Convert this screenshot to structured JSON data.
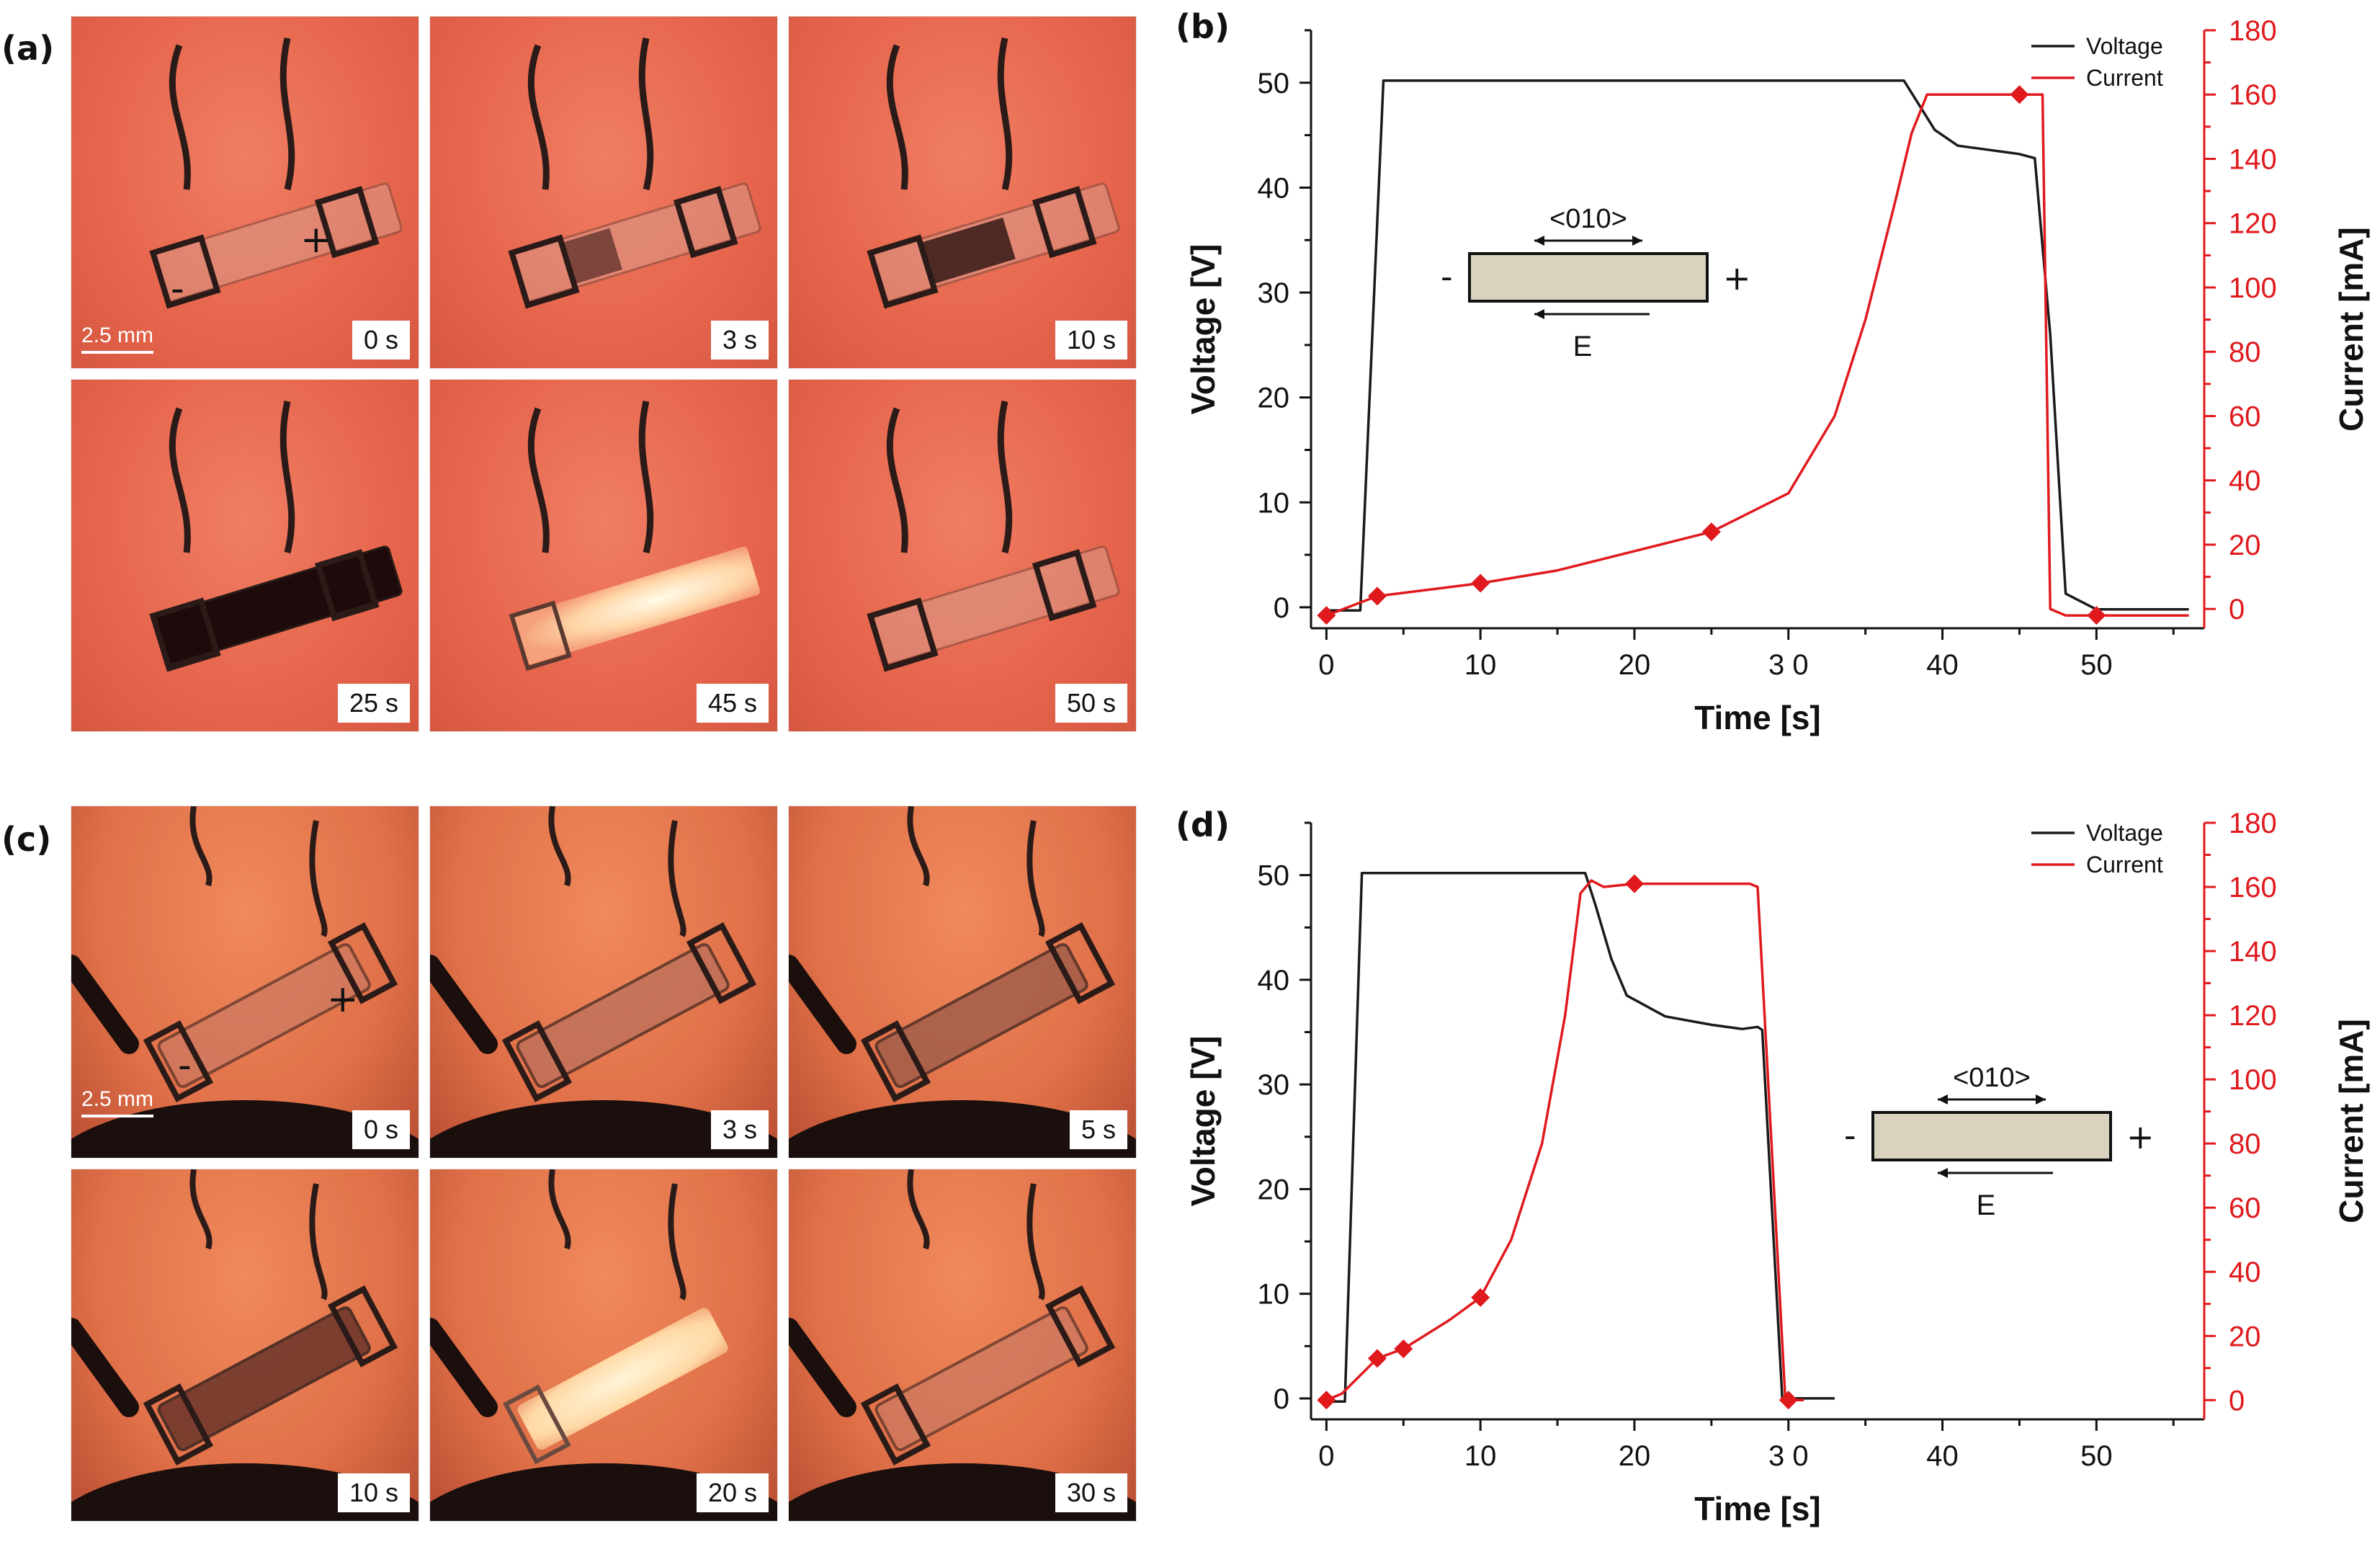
{
  "panels": {
    "a": {
      "label": "(a)",
      "times": [
        "0 s",
        "3 s",
        "10 s",
        "25 s",
        "45 s",
        "50 s"
      ],
      "scale": "2.5 mm",
      "minus": "-",
      "plus": "+"
    },
    "b": {
      "label": "(b)"
    },
    "c": {
      "label": "(c)",
      "times": [
        "0 s",
        "3 s",
        "5 s",
        "10 s",
        "20 s",
        "30 s"
      ],
      "scale": "2.5 mm",
      "minus": "-",
      "plus": "+"
    },
    "d": {
      "label": "(d)"
    }
  },
  "chart_data": [
    {
      "type": "line",
      "panel": "(b)",
      "xlabel": "Time [s]",
      "ylabel": "Voltage [V]",
      "y2label": "Current [mA]",
      "xlim": [
        -1,
        57
      ],
      "ylim": [
        -2,
        55
      ],
      "y2lim": [
        -6,
        180
      ],
      "xticks": [
        "0",
        "10",
        "20",
        "3 0",
        "40",
        "50"
      ],
      "xtick_values": [
        0,
        10,
        20,
        30,
        40,
        50
      ],
      "yticks": [
        0,
        10,
        20,
        30,
        40,
        50
      ],
      "y2ticks": [
        0,
        20,
        40,
        60,
        80,
        100,
        120,
        140,
        160,
        180
      ],
      "legend_position": "top-right",
      "series": [
        {
          "name": "Voltage",
          "color": "#1a1a1a",
          "axis": "left",
          "x": [
            0,
            2.2,
            3.7,
            37.5,
            39.5,
            41,
            45,
            46,
            47,
            48,
            50,
            56
          ],
          "y": [
            -0.3,
            -0.3,
            50.2,
            50.2,
            45.5,
            44,
            43.2,
            42.8,
            26,
            1.3,
            -0.2,
            -0.2
          ]
        },
        {
          "name": "Current",
          "color": "#e0191d",
          "axis": "right",
          "x": [
            0,
            3.3,
            5,
            10,
            15,
            20,
            25,
            30,
            33,
            35,
            37,
            38,
            39,
            45,
            46.5,
            47,
            48,
            50,
            56
          ],
          "y": [
            -2,
            4,
            5,
            8,
            12,
            18,
            24,
            36,
            60,
            90,
            128,
            148,
            160,
            160,
            160,
            0,
            -2,
            -2,
            -2
          ],
          "markers": {
            "x": [
              0,
              3.3,
              10,
              25,
              45,
              50
            ],
            "y": [
              -2,
              4,
              8,
              24,
              160,
              -2
            ]
          }
        }
      ],
      "inset": {
        "direction": "<010>",
        "field": "E",
        "minus": "-",
        "plus": "+",
        "fill": "#d8d2bf"
      }
    },
    {
      "type": "line",
      "panel": "(d)",
      "xlabel": "Time [s]",
      "ylabel": "Voltage [V]",
      "y2label": "Current [mA]",
      "xlim": [
        -1,
        57
      ],
      "ylim": [
        -2,
        55
      ],
      "y2lim": [
        -6,
        180
      ],
      "xticks": [
        "0",
        "10",
        "20",
        "3 0",
        "40",
        "50"
      ],
      "xtick_values": [
        0,
        10,
        20,
        30,
        40,
        50
      ],
      "yticks": [
        0,
        10,
        20,
        30,
        40,
        50
      ],
      "y2ticks": [
        0,
        20,
        40,
        60,
        80,
        100,
        120,
        140,
        160,
        180
      ],
      "legend_position": "top-right",
      "series": [
        {
          "name": "Voltage",
          "color": "#1a1a1a",
          "axis": "left",
          "x": [
            0,
            1.2,
            2.3,
            16.8,
            17.5,
            18.5,
            19.5,
            22,
            25,
            27,
            28,
            28.3,
            29.6,
            33
          ],
          "y": [
            -0.3,
            -0.3,
            50.2,
            50.2,
            47,
            42,
            38.5,
            36.5,
            35.7,
            35.3,
            35.5,
            35.2,
            0,
            0
          ]
        },
        {
          "name": "Current",
          "color": "#e0191d",
          "axis": "right",
          "x": [
            0,
            1,
            3.3,
            5,
            8,
            10,
            12,
            14,
            15.5,
            16.5,
            17.2,
            18,
            20,
            27.5,
            28,
            29.8,
            31
          ],
          "y": [
            0,
            2,
            13,
            16,
            25,
            32,
            50,
            80,
            120,
            158,
            162,
            160,
            161,
            161,
            160,
            0,
            0
          ],
          "markers": {
            "x": [
              0,
              3.3,
              5,
              10,
              20,
              30
            ],
            "y": [
              0,
              13,
              16,
              32,
              161,
              0
            ]
          }
        }
      ],
      "inset": {
        "direction": "<010>",
        "field": "E",
        "minus": "-",
        "plus": "+",
        "fill": "#d8d2bf"
      }
    }
  ]
}
